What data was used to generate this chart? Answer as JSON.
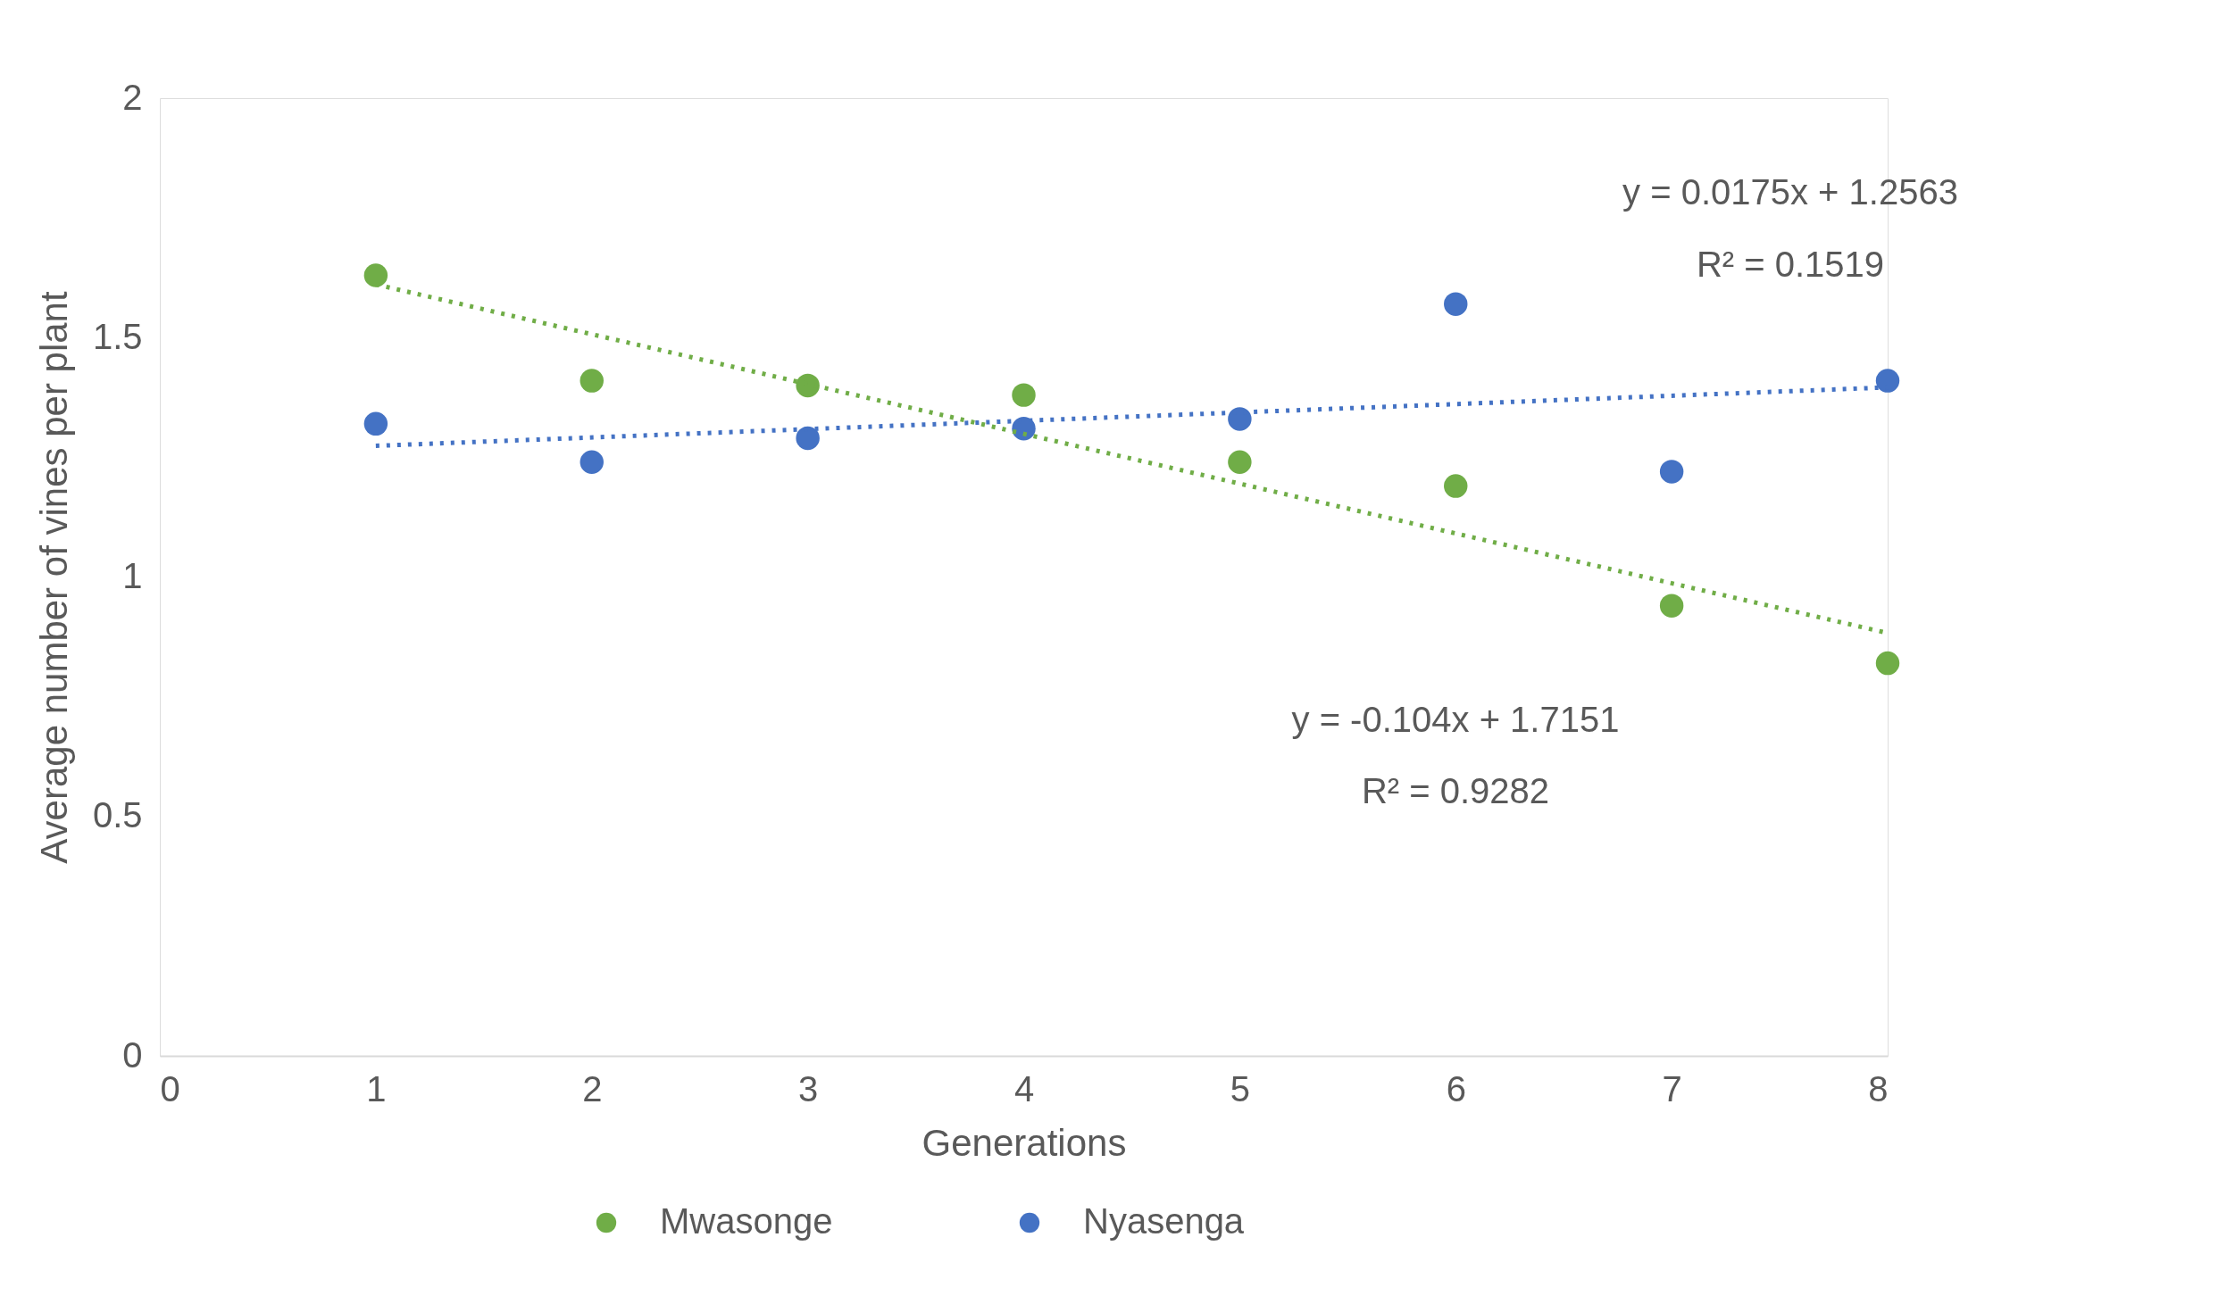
{
  "chart_data": {
    "type": "scatter",
    "xlabel": "Generations",
    "ylabel": "Average number of vines per plant",
    "xlim": [
      0,
      8
    ],
    "xticks": [
      0,
      1,
      2,
      3,
      4,
      5,
      6,
      7,
      8
    ],
    "ylim": [
      0,
      2
    ],
    "yticks": [
      0,
      0.5,
      1,
      1.5,
      2
    ],
    "grid": false,
    "legend": "bottom",
    "series": [
      {
        "name": "Mwasonge",
        "marker": "circle",
        "color": "#70ad47",
        "x": [
          1,
          2,
          3,
          4,
          5,
          6,
          7,
          8
        ],
        "values": [
          1.63,
          1.41,
          1.4,
          1.38,
          1.24,
          1.19,
          0.94,
          0.82
        ]
      },
      {
        "name": "Nyasenga",
        "marker": "circle",
        "color": "#4472c4",
        "x": [
          1,
          2,
          3,
          4,
          5,
          6,
          7,
          8
        ],
        "values": [
          1.32,
          1.24,
          1.29,
          1.31,
          1.33,
          1.57,
          1.22,
          1.41
        ]
      },
      {
        "type": "line",
        "marker": "none",
        "line_style": "dotted",
        "color": "#70ad47",
        "x": [
          1,
          8
        ],
        "values": [
          1.611,
          0.883
        ]
      },
      {
        "type": "line",
        "marker": "none",
        "line_style": "dotted",
        "color": "#4472c4",
        "x": [
          1,
          8
        ],
        "values": [
          1.274,
          1.396
        ]
      }
    ],
    "annotations": [
      "y = 0.0175x + 1.2563",
      "R² = 0.1519",
      "y = -0.104x + 1.7151",
      "R² = 0.9282"
    ]
  }
}
